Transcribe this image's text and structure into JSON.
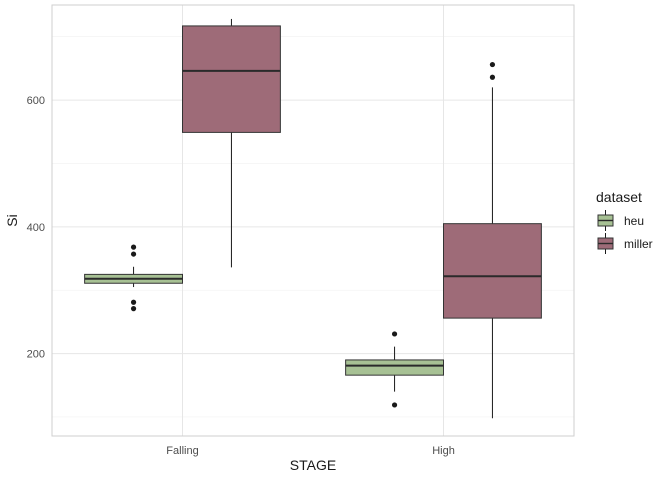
{
  "chart_data": {
    "type": "boxplot",
    "xlabel": "STAGE",
    "ylabel": "Si",
    "categories": [
      "Falling",
      "High"
    ],
    "ylim": [
      70,
      750
    ],
    "yticks": [
      200,
      400,
      600
    ],
    "grid": true,
    "legend": {
      "title": "dataset",
      "position": "right",
      "entries": [
        {
          "label": "heu",
          "color": "#A7C194"
        },
        {
          "label": "miller",
          "color": "#9E6B78"
        }
      ]
    },
    "series": [
      {
        "name": "heu",
        "color": "#A7C194",
        "boxes": [
          {
            "category": "Falling",
            "whisker_low": 305,
            "q1": 311,
            "median": 318,
            "q3": 325,
            "whisker_high": 337,
            "outliers": [
              271,
              281,
              357,
              368
            ]
          },
          {
            "category": "High",
            "whisker_low": 140,
            "q1": 166,
            "median": 181,
            "q3": 190,
            "whisker_high": 211,
            "outliers": [
              119,
              231
            ]
          }
        ]
      },
      {
        "name": "miller",
        "color": "#9E6B78",
        "boxes": [
          {
            "category": "Falling",
            "whisker_low": 336,
            "q1": 549,
            "median": 646,
            "q3": 717,
            "whisker_high": 728,
            "outliers": []
          },
          {
            "category": "High",
            "whisker_low": 98,
            "q1": 256,
            "median": 322,
            "q3": 405,
            "whisker_high": 620,
            "outliers": [
              636,
              656
            ]
          }
        ]
      }
    ]
  }
}
